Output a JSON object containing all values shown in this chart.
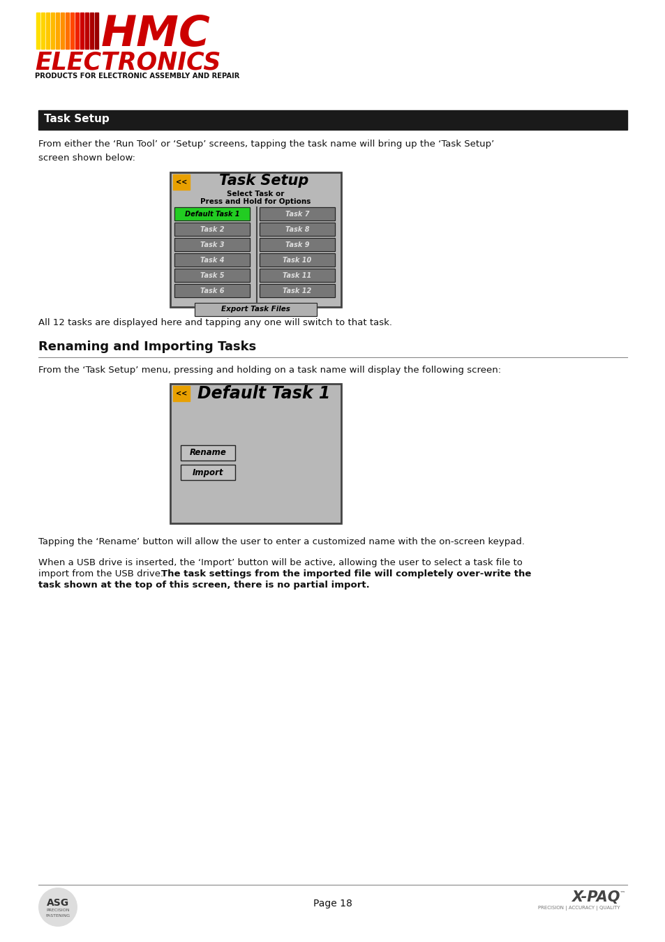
{
  "page_bg": "#ffffff",
  "logo_subtitle": "PRODUCTS FOR ELECTRONIC ASSEMBLY AND REPAIR",
  "section1_title": "Task Setup",
  "section1_title_bg": "#1a1a1a",
  "section1_title_color": "#ffffff",
  "section1_body1": "From either the ‘Run Tool’ or ‘Setup’ screens, tapping the task name will bring up the ‘Task Setup’\nscreen shown below:",
  "tasksetup_screen_title": "Task Setup",
  "tasksetup_subtitle1": "Select Task or",
  "tasksetup_subtitle2": "Press and Hold for Options",
  "task_labels_left": [
    "Default Task 1",
    "Task 2",
    "Task 3",
    "Task 4",
    "Task 5",
    "Task 6"
  ],
  "task_labels_right": [
    "Task 7",
    "Task 8",
    "Task 9",
    "Task 10",
    "Task 11",
    "Task 12"
  ],
  "export_label": "Export Task Files",
  "task_green_color": "#22cc22",
  "task_gray_color": "#777777",
  "screen_bg": "#b8b8b8",
  "section1_caption": "All 12 tasks are displayed here and tapping any one will switch to that task.",
  "section2_title": "Renaming and Importing Tasks",
  "section2_body1": "From the ‘Task Setup’ menu, pressing and holding on a task name will display the following screen:",
  "default_task_screen_title": "Default Task 1",
  "rename_btn": "Rename",
  "import_btn": "Import",
  "section2_body2": "Tapping the ‘Rename’ button will allow the user to enter a customized name with the on-screen keypad.",
  "section2_body3a": "When a USB drive is inserted, the ‘Import’ button will be active, allowing the user to select a task file to\nimport from the USB drive.  ",
  "section2_body3b": "The task settings from the imported file will completely over-write the task shown at the top of this screen, there is no partial import.",
  "page_label": "Page 18",
  "orange_btn": "#E8A000",
  "btn_border": "#222222",
  "export_btn_bg": "#b0b0b0"
}
